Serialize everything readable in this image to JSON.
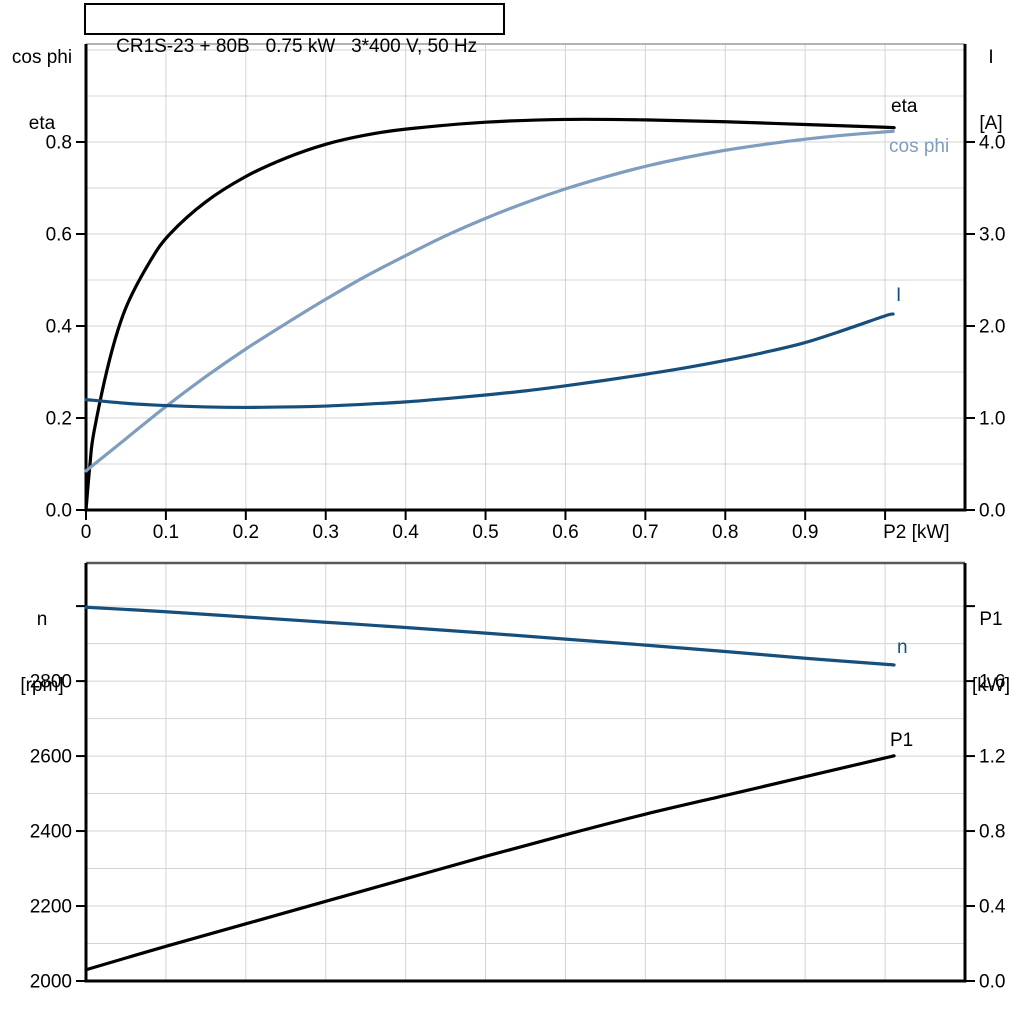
{
  "title_box": "CR1S-23 + 80B   0.75 kW   3*400 V, 50 Hz",
  "colors": {
    "eta_black": "#000000",
    "cos_phi_blue": "#7f9dbe",
    "current_navy": "#174f7c",
    "grid": "#d4d4d4",
    "frame": "#000000"
  },
  "chart_data": [
    {
      "type": "line",
      "title": "CR1S-23 + 80B   0.75 kW   3*400 V, 50 Hz",
      "grid": true,
      "legend_position": "end-of-curve labels",
      "left_axis": {
        "title_lines": [
          "cos phi",
          "eta"
        ],
        "tick_values": [
          0,
          0.2,
          0.4,
          0.6,
          0.8
        ],
        "tick_labels": [
          "0.0",
          "0.2",
          "0.4",
          "0.6",
          "0.8"
        ],
        "range": [
          0,
          1.013
        ]
      },
      "right_axis": {
        "title_lines": [
          "I",
          "[A]"
        ],
        "tick_values": [
          0,
          1,
          2,
          3,
          4
        ],
        "tick_labels": [
          "0.0",
          "1.0",
          "2.0",
          "3.0",
          "4.0"
        ],
        "range": [
          0,
          5.065
        ]
      },
      "x_axis": {
        "label": "P2 [kW]",
        "tick_values": [
          0,
          0.1,
          0.2,
          0.3,
          0.4,
          0.5,
          0.6,
          0.7,
          0.8,
          0.9,
          1.0
        ],
        "tick_labels": [
          "0",
          "0.1",
          "0.2",
          "0.3",
          "0.4",
          "0.5",
          "0.6",
          "0.7",
          "0.8",
          "0.9",
          "P2 [kW]"
        ],
        "range": [
          0,
          1.1
        ]
      },
      "series": [
        {
          "name": "eta",
          "label": "eta",
          "axis": "left",
          "color": "#000000",
          "points": [
            [
              0,
              0
            ],
            [
              0.005,
              0.1
            ],
            [
              0.01,
              0.17
            ],
            [
              0.03,
              0.33
            ],
            [
              0.05,
              0.44
            ],
            [
              0.08,
              0.54
            ],
            [
              0.105,
              0.6
            ],
            [
              0.15,
              0.67
            ],
            [
              0.2,
              0.725
            ],
            [
              0.25,
              0.765
            ],
            [
              0.3,
              0.795
            ],
            [
              0.35,
              0.815
            ],
            [
              0.4,
              0.828
            ],
            [
              0.5,
              0.843
            ],
            [
              0.6,
              0.849
            ],
            [
              0.7,
              0.848
            ],
            [
              0.8,
              0.844
            ],
            [
              0.9,
              0.838
            ],
            [
              1.0,
              0.832
            ],
            [
              1.01,
              0.831
            ]
          ]
        },
        {
          "name": "cos phi",
          "label": "cos phi",
          "axis": "left",
          "color": "#7f9dbe",
          "points": [
            [
              0,
              0.085
            ],
            [
              0.05,
              0.155
            ],
            [
              0.1,
              0.225
            ],
            [
              0.15,
              0.29
            ],
            [
              0.2,
              0.35
            ],
            [
              0.25,
              0.405
            ],
            [
              0.3,
              0.458
            ],
            [
              0.35,
              0.508
            ],
            [
              0.4,
              0.553
            ],
            [
              0.45,
              0.596
            ],
            [
              0.5,
              0.634
            ],
            [
              0.55,
              0.668
            ],
            [
              0.6,
              0.698
            ],
            [
              0.65,
              0.724
            ],
            [
              0.7,
              0.747
            ],
            [
              0.75,
              0.766
            ],
            [
              0.8,
              0.782
            ],
            [
              0.85,
              0.795
            ],
            [
              0.9,
              0.806
            ],
            [
              0.95,
              0.815
            ],
            [
              1.0,
              0.822
            ],
            [
              1.01,
              0.823
            ]
          ]
        },
        {
          "name": "I",
          "label": "I",
          "axis": "right",
          "color": "#174f7c",
          "points": [
            [
              0,
              1.2
            ],
            [
              0.05,
              1.16
            ],
            [
              0.1,
              1.135
            ],
            [
              0.15,
              1.12
            ],
            [
              0.2,
              1.115
            ],
            [
              0.25,
              1.12
            ],
            [
              0.3,
              1.13
            ],
            [
              0.35,
              1.15
            ],
            [
              0.4,
              1.175
            ],
            [
              0.45,
              1.21
            ],
            [
              0.5,
              1.25
            ],
            [
              0.55,
              1.295
            ],
            [
              0.6,
              1.35
            ],
            [
              0.65,
              1.41
            ],
            [
              0.7,
              1.475
            ],
            [
              0.75,
              1.545
            ],
            [
              0.8,
              1.625
            ],
            [
              0.85,
              1.715
            ],
            [
              0.9,
              1.82
            ],
            [
              0.95,
              1.96
            ],
            [
              1.0,
              2.11
            ],
            [
              1.01,
              2.13
            ]
          ]
        }
      ]
    },
    {
      "type": "line",
      "title": "",
      "grid": true,
      "legend_position": "end-of-curve labels",
      "left_axis": {
        "title_lines": [
          "n",
          "[rpm]"
        ],
        "tick_values": [
          2000,
          2200,
          2400,
          2600,
          2800,
          3000
        ],
        "tick_labels": [
          "2000",
          "2200",
          "2400",
          "2600",
          "2800",
          ""
        ],
        "range": [
          2000,
          3115
        ]
      },
      "right_axis": {
        "title_lines": [
          "P1",
          "[kW]"
        ],
        "tick_values": [
          0,
          0.4,
          0.8,
          1.2,
          1.6,
          2.0
        ],
        "tick_labels": [
          "0.0",
          "0.4",
          "0.8",
          "1.2",
          "1.6",
          ""
        ],
        "range": [
          0,
          2.23
        ]
      },
      "x_axis": {
        "label": "",
        "tick_values": [],
        "tick_labels": [],
        "range": [
          0,
          1.1
        ]
      },
      "series": [
        {
          "name": "n",
          "label": "n",
          "axis": "left",
          "color": "#174f7c",
          "points": [
            [
              0,
              2997
            ],
            [
              0.1,
              2985
            ],
            [
              0.2,
              2971
            ],
            [
              0.3,
              2957
            ],
            [
              0.4,
              2943
            ],
            [
              0.5,
              2928
            ],
            [
              0.6,
              2912
            ],
            [
              0.7,
              2896
            ],
            [
              0.8,
              2879
            ],
            [
              0.9,
              2861
            ],
            [
              1.0,
              2845
            ],
            [
              1.01,
              2843
            ]
          ]
        },
        {
          "name": "P1",
          "label": "P1",
          "axis": "right",
          "color": "#000000",
          "points": [
            [
              0,
              0.06
            ],
            [
              0.1,
              0.185
            ],
            [
              0.2,
              0.305
            ],
            [
              0.3,
              0.425
            ],
            [
              0.4,
              0.545
            ],
            [
              0.5,
              0.665
            ],
            [
              0.6,
              0.78
            ],
            [
              0.7,
              0.89
            ],
            [
              0.8,
              0.99
            ],
            [
              0.9,
              1.09
            ],
            [
              1.0,
              1.19
            ],
            [
              1.01,
              1.2
            ]
          ]
        }
      ]
    }
  ]
}
